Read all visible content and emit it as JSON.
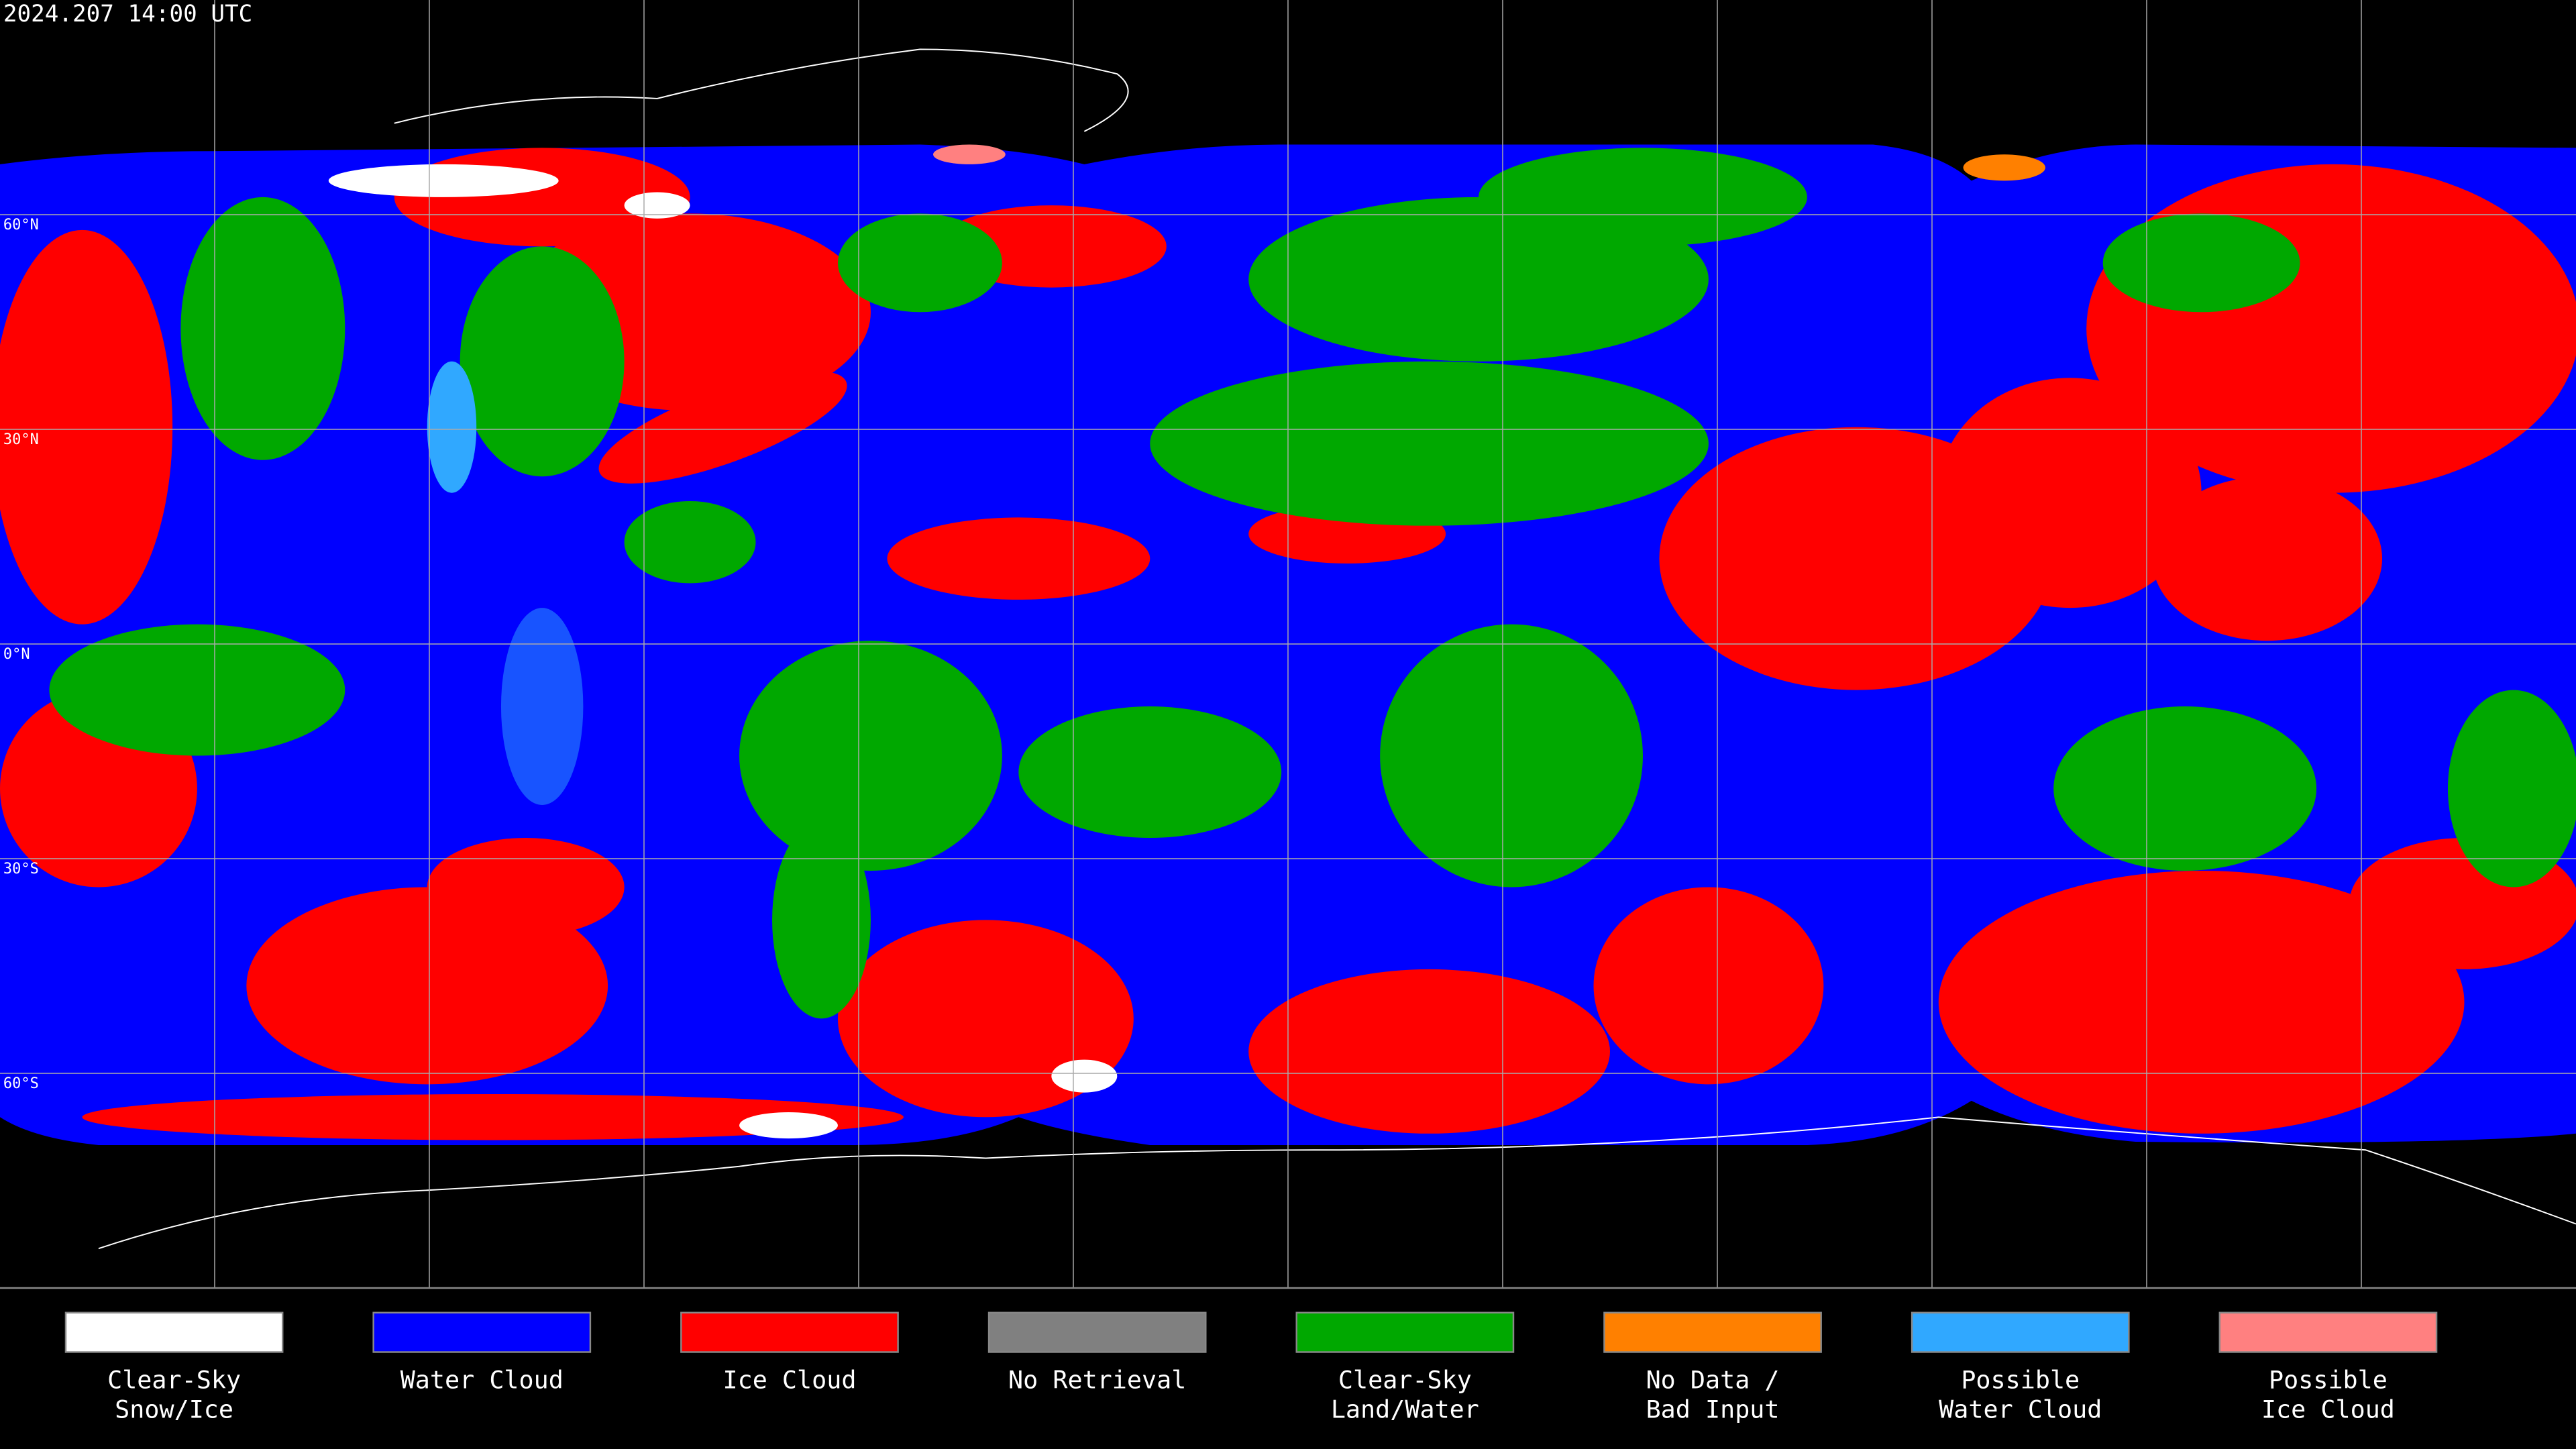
{
  "header": {
    "title": "2024.207 14:00 UTC"
  },
  "map": {
    "grid_labels": [
      "60°N",
      "30°N",
      "0°N",
      "30°S",
      "60°S"
    ]
  },
  "legend": {
    "items": [
      {
        "lines": [
          "Clear-Sky",
          "Snow/Ice"
        ],
        "color": "#ffffff"
      },
      {
        "lines": [
          "Water Cloud"
        ],
        "color": "#0000ff"
      },
      {
        "lines": [
          "Ice Cloud"
        ],
        "color": "#ff0000"
      },
      {
        "lines": [
          "No Retrieval"
        ],
        "color": "#808080"
      },
      {
        "lines": [
          "Clear-Sky",
          "Land/Water"
        ],
        "color": "#00a800"
      },
      {
        "lines": [
          "No Data /",
          "Bad Input"
        ],
        "color": "#ff8000"
      },
      {
        "lines": [
          "Possible",
          "Water Cloud"
        ],
        "color": "#30a8ff"
      },
      {
        "lines": [
          "Possible",
          "Ice Cloud"
        ],
        "color": "#ff8080"
      }
    ]
  }
}
